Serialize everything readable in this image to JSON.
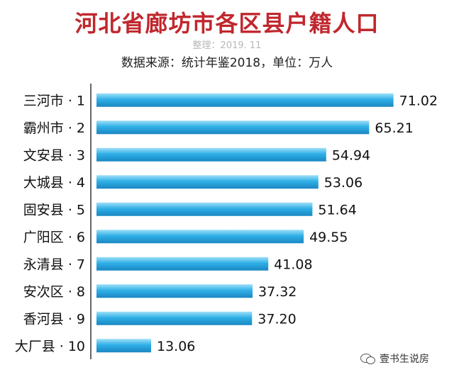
{
  "title": "河北省廊坊市各区县户籍人口",
  "subtitle": "整理：2019. 11",
  "source": "数据来源：统计年鉴2018，单位：万人",
  "watermark": "壹书生说房",
  "colors": {
    "title": "#c0272d",
    "bar_light": "#9fe0f8",
    "bar_mid": "#2fb0e6",
    "bar_dark": "#1a86c2",
    "axis": "#333333"
  },
  "chart_data": {
    "type": "bar",
    "orientation": "horizontal",
    "title": "河北省廊坊市各区县户籍人口",
    "subtitle": "整理：2019. 11",
    "categories": [
      "三河市 · 1",
      "霸州市 · 2",
      "文安县 · 3",
      "大城县 · 4",
      "固安县 · 5",
      "广阳区 · 6",
      "永清县 · 7",
      "安次区 · 8",
      "香河县 · 9",
      "大厂县 · 10"
    ],
    "values": [
      71.02,
      65.21,
      54.94,
      53.06,
      51.64,
      49.55,
      41.08,
      37.32,
      37.2,
      13.06
    ],
    "value_labels": [
      "71.02",
      "65.21",
      "54.94",
      "53.06",
      "51.64",
      "49.55",
      "41.08",
      "37.32",
      "37.20",
      "13.06"
    ],
    "xlim": [
      0,
      76
    ],
    "grid": false,
    "legend": "none"
  }
}
